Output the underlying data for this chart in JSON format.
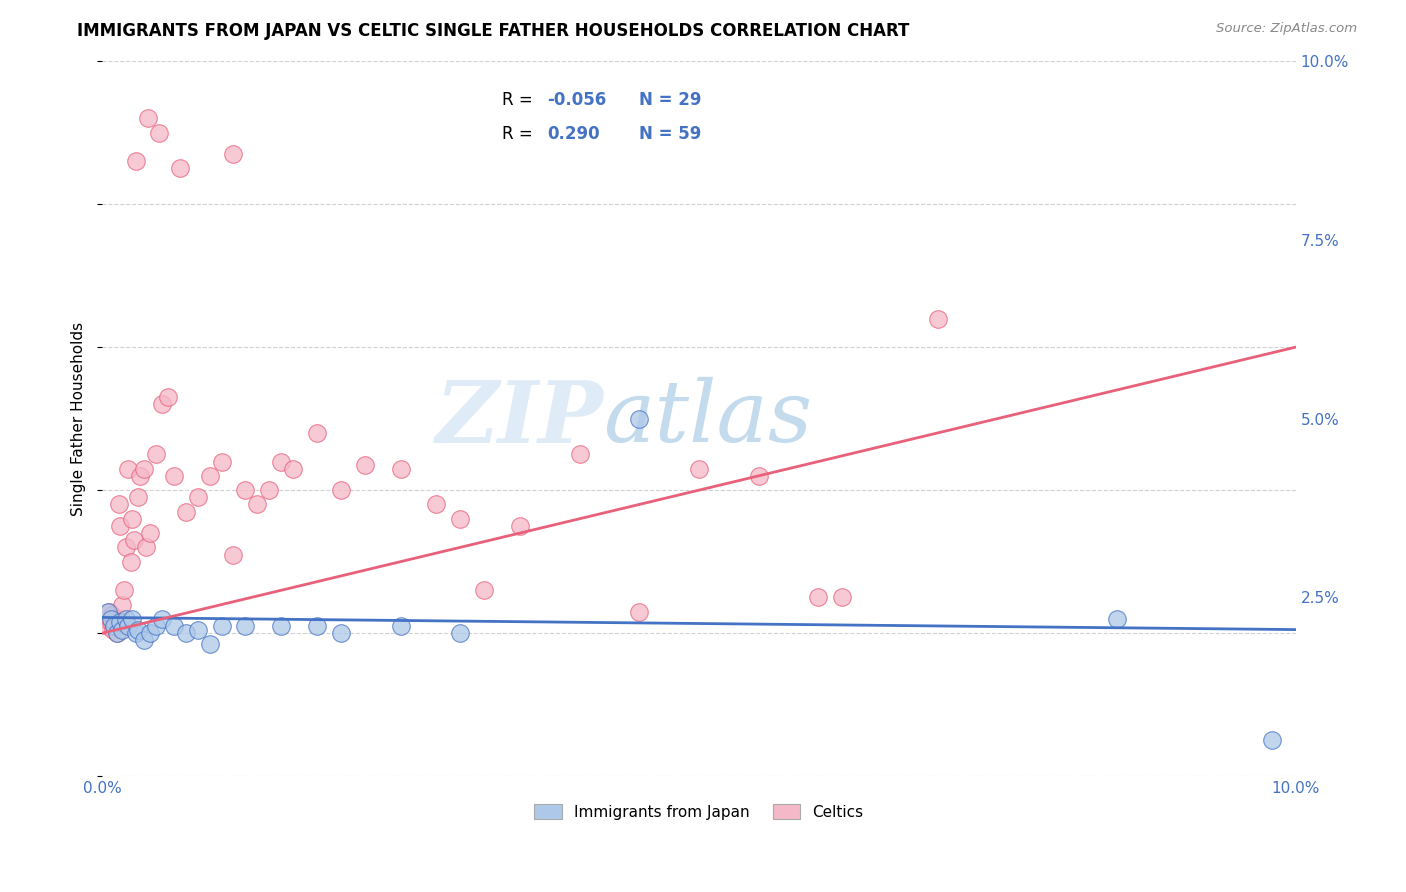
{
  "title": "IMMIGRANTS FROM JAPAN VS CELTIC SINGLE FATHER HOUSEHOLDS CORRELATION CHART",
  "source": "Source: ZipAtlas.com",
  "ylabel": "Single Father Households",
  "legend_label1": "Immigrants from Japan",
  "legend_label2": "Celtics",
  "color_japan": "#adc8e8",
  "color_celtic": "#f5b8c8",
  "color_japan_line": "#4472c4",
  "color_celtic_line": "#e8607a",
  "watermark_zip": "ZIP",
  "watermark_atlas": "atlas",
  "xlim": [
    0.0,
    10.0
  ],
  "ylim": [
    0.0,
    10.0
  ],
  "japan_x": [
    0.05,
    0.07,
    0.1,
    0.12,
    0.15,
    0.17,
    0.2,
    0.22,
    0.25,
    0.28,
    0.3,
    0.35,
    0.4,
    0.45,
    0.5,
    0.6,
    0.7,
    0.8,
    0.9,
    1.0,
    1.2,
    1.5,
    1.8,
    2.0,
    2.5,
    3.0,
    4.5,
    8.5,
    9.8
  ],
  "japan_y": [
    2.3,
    2.2,
    2.1,
    2.0,
    2.15,
    2.05,
    2.2,
    2.1,
    2.2,
    2.0,
    2.05,
    1.9,
    2.0,
    2.1,
    2.2,
    2.1,
    2.0,
    2.05,
    1.85,
    2.1,
    2.1,
    2.1,
    2.1,
    2.0,
    2.1,
    2.0,
    5.0,
    2.2,
    0.5
  ],
  "celtic_x": [
    0.02,
    0.04,
    0.06,
    0.07,
    0.08,
    0.09,
    0.1,
    0.11,
    0.12,
    0.13,
    0.14,
    0.15,
    0.16,
    0.17,
    0.18,
    0.2,
    0.22,
    0.24,
    0.25,
    0.27,
    0.3,
    0.32,
    0.35,
    0.37,
    0.4,
    0.45,
    0.5,
    0.55,
    0.6,
    0.7,
    0.8,
    0.9,
    1.0,
    1.1,
    1.2,
    1.3,
    1.4,
    1.5,
    1.6,
    1.8,
    2.0,
    2.2,
    2.5,
    2.8,
    3.0,
    3.2,
    3.5,
    4.0,
    4.5,
    5.0,
    5.5,
    6.0,
    6.2,
    7.0,
    0.28,
    0.38,
    0.48,
    0.65,
    1.1
  ],
  "celtic_y": [
    2.2,
    2.1,
    2.3,
    2.15,
    2.25,
    2.05,
    2.1,
    2.2,
    2.0,
    2.15,
    3.8,
    3.5,
    2.2,
    2.4,
    2.6,
    3.2,
    4.3,
    3.0,
    3.6,
    3.3,
    3.9,
    4.2,
    4.3,
    3.2,
    3.4,
    4.5,
    5.2,
    5.3,
    4.2,
    3.7,
    3.9,
    4.2,
    4.4,
    3.1,
    4.0,
    3.8,
    4.0,
    4.4,
    4.3,
    4.8,
    4.0,
    4.35,
    4.3,
    3.8,
    3.6,
    2.6,
    3.5,
    4.5,
    2.3,
    4.3,
    4.2,
    2.5,
    2.5,
    6.4,
    8.6,
    9.2,
    9.0,
    8.5,
    8.7
  ],
  "celtic_line_x0": 0.0,
  "celtic_line_y0": 2.0,
  "celtic_line_x1": 10.0,
  "celtic_line_y1": 6.0,
  "japan_line_x0": 0.0,
  "japan_line_y0": 2.22,
  "japan_line_x1": 10.0,
  "japan_line_y1": 2.05
}
